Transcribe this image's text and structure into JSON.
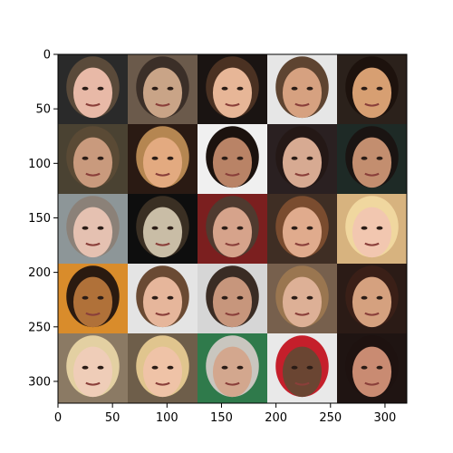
{
  "axes": {
    "x_ticks": [
      "0",
      "50",
      "100",
      "150",
      "200",
      "250",
      "300"
    ],
    "y_ticks": [
      "0",
      "50",
      "100",
      "150",
      "200",
      "250",
      "300"
    ],
    "x_range": [
      0,
      320
    ],
    "y_range": [
      0,
      320
    ]
  },
  "grid": {
    "rows": 5,
    "cols": 5,
    "tile_size": 64,
    "tiles": [
      {
        "bg": "#2a2a2a",
        "skin": "#e8b9a7",
        "hair": "#5a4a3a"
      },
      {
        "bg": "#6b5a4b",
        "skin": "#c9a487",
        "hair": "#3b2f28"
      },
      {
        "bg": "#1a1412",
        "skin": "#e7b697",
        "hair": "#4a3122"
      },
      {
        "bg": "#e6e6e6",
        "skin": "#d6a180",
        "hair": "#5e4431"
      },
      {
        "bg": "#2b211b",
        "skin": "#d79f72",
        "hair": "#1d120d"
      },
      {
        "bg": "#4a4232",
        "skin": "#c99a7d",
        "hair": "#5a4a35"
      },
      {
        "bg": "#2a1a13",
        "skin": "#e3aa80",
        "hair": "#b58651"
      },
      {
        "bg": "#f0f0f0",
        "skin": "#b98366",
        "hair": "#1b120e"
      },
      {
        "bg": "#2a2021",
        "skin": "#d7aa92",
        "hair": "#241816"
      },
      {
        "bg": "#1e2a26",
        "skin": "#c38e6f",
        "hair": "#1a1412"
      },
      {
        "bg": "#8d9698",
        "skin": "#e5c1b1",
        "hair": "#8b8178"
      },
      {
        "bg": "#0e0e0e",
        "skin": "#c9bda6",
        "hair": "#3a2f23"
      },
      {
        "bg": "#7b1f1f",
        "skin": "#d6a38b",
        "hair": "#4f3a2f"
      },
      {
        "bg": "#3f2e24",
        "skin": "#e0ab8d",
        "hair": "#7a4c2f"
      },
      {
        "bg": "#d7b37f",
        "skin": "#f2c7b0",
        "hair": "#f0d79f"
      },
      {
        "bg": "#d98c2b",
        "skin": "#b07139",
        "hair": "#2a1a10"
      },
      {
        "bg": "#e4e4e4",
        "skin": "#e6b69b",
        "hair": "#6a4a33"
      },
      {
        "bg": "#d6d6d6",
        "skin": "#c7967c",
        "hair": "#3a2c24"
      },
      {
        "bg": "#77604d",
        "skin": "#ddb096",
        "hair": "#9a7650"
      },
      {
        "bg": "#2b1b16",
        "skin": "#d5a17f",
        "hair": "#3a1f17"
      },
      {
        "bg": "#8b7a64",
        "skin": "#efcdb8",
        "hair": "#e3d0a2"
      },
      {
        "bg": "#6e5e4a",
        "skin": "#efc3a7",
        "hair": "#e0c58e"
      },
      {
        "bg": "#2f7a4b",
        "skin": "#d3a78e",
        "hair": "#c9c6bf"
      },
      {
        "bg": "#e9e9e9",
        "skin": "#6a4532",
        "hair": "#c51f2b"
      },
      {
        "bg": "#1f1412",
        "skin": "#c98b72",
        "hair": "#1e1210"
      }
    ]
  }
}
